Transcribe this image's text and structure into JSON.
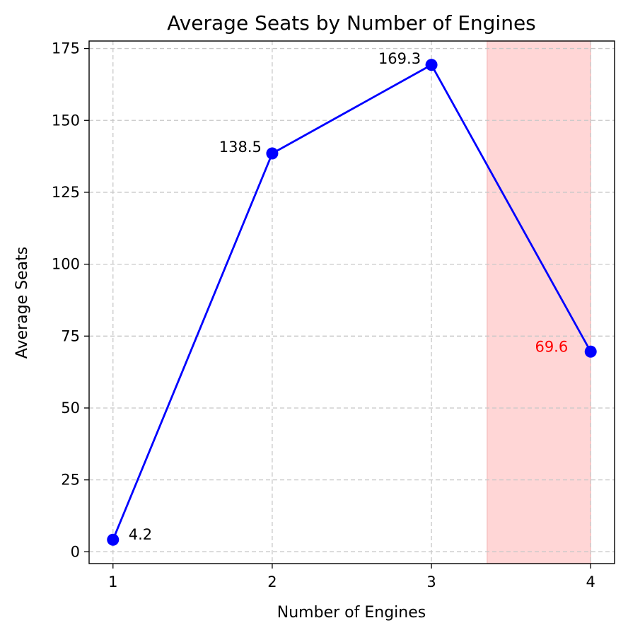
{
  "chart_data": {
    "type": "line",
    "title": "Average Seats by Number of Engines",
    "xlabel": "Number of Engines",
    "ylabel": "Average Seats",
    "x": [
      1,
      2,
      3,
      4
    ],
    "values": [
      4.2,
      138.5,
      169.3,
      69.6
    ],
    "data_labels": [
      "4.2",
      "138.5",
      "169.3",
      "69.6"
    ],
    "xticks": [
      1,
      2,
      3,
      4
    ],
    "yticks": [
      0,
      25,
      50,
      75,
      100,
      125,
      150,
      175
    ],
    "xlim": [
      0.85,
      4.15
    ],
    "ylim": [
      -4.1,
      177.6
    ],
    "grid": true,
    "highlight_span": [
      3.35,
      4.0
    ],
    "highlighted_point_index": 3,
    "colors": {
      "line": "#0000ff",
      "marker": "#0000ff",
      "highlight_fill": "#ffd6d6",
      "highlight_label": "#ff0000",
      "grid": "#c8c8c8"
    }
  }
}
